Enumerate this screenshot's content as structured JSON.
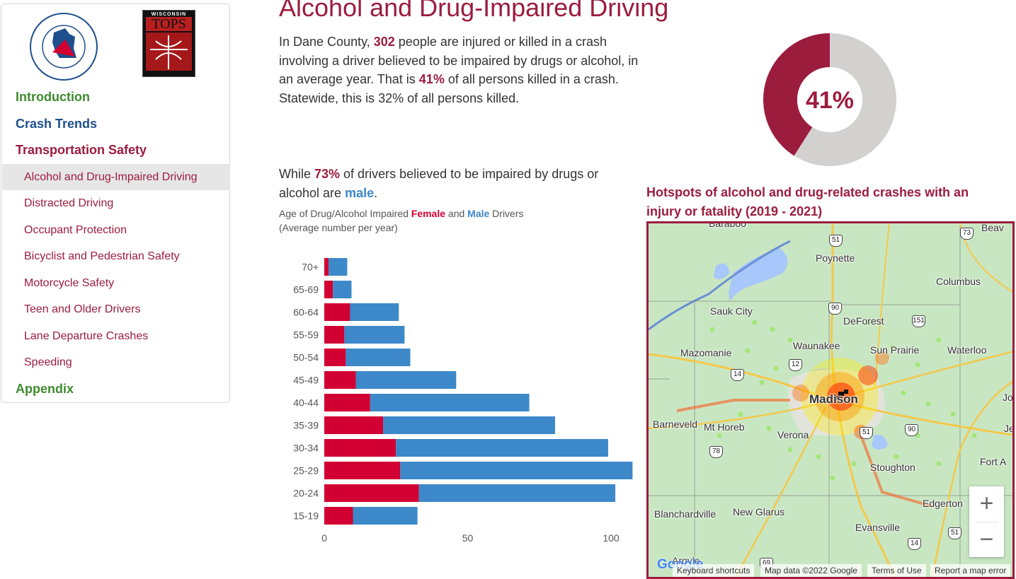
{
  "sidebar": {
    "logo_wisdot_text": "WISCONSIN DEPARTMENT OF TRANSPORTATION",
    "logo_tops_small": "WISCONSIN",
    "logo_tops_big": "TOPS",
    "sections": [
      {
        "label": "Introduction",
        "color": "#3f8a2f"
      },
      {
        "label": "Crash Trends",
        "color": "#1f4f8c"
      },
      {
        "label": "Transportation Safety",
        "color": "#9c1c3e"
      },
      {
        "label": "Appendix",
        "color": "#3f8a2f"
      }
    ],
    "items": [
      {
        "label": "Alcohol and Drug-Impaired Driving",
        "active": true
      },
      {
        "label": "Distracted Driving"
      },
      {
        "label": "Occupant Protection"
      },
      {
        "label": "Bicyclist and Pedestrian Safety"
      },
      {
        "label": "Motorcycle Safety"
      },
      {
        "label": "Teen and Older Drivers"
      },
      {
        "label": "Lane Departure Crashes"
      },
      {
        "label": "Speeding"
      }
    ]
  },
  "main": {
    "title": "Alcohol and Drug-Impaired Driving",
    "intro": {
      "p1": "In Dane County, ",
      "count": "302",
      "p2": " people are injured or killed in a crash involving a driver believed to be impaired by drugs or alcohol, in an average year. That is ",
      "pct": "41%",
      "p3": " of all persons killed in a crash. Statewide, this is 32% of all persons killed."
    },
    "male_stat": {
      "p1": "While ",
      "pct": "73%",
      "p2": " of drivers believed to be impaired by drugs or alcohol are ",
      "male": "male",
      "p3": "."
    },
    "chart_caption": {
      "p1": "Age of Drug/Alcohol Impaired ",
      "female": "Female",
      "p2": " and ",
      "male": "Male",
      "p3": " Drivers (Average number per year)"
    },
    "donut_label": "41%"
  },
  "colors": {
    "accent": "#9c1c3e",
    "female": "#d20032",
    "male": "#3d88c8",
    "donut_grey": "#d3d0d0"
  },
  "chart_data": [
    {
      "type": "bar",
      "orientation": "horizontal",
      "stacked": true,
      "categories": [
        "70+",
        "65-69",
        "60-64",
        "55-59",
        "50-54",
        "45-49",
        "40-44",
        "35-39",
        "30-34",
        "25-29",
        "20-24",
        "15-19"
      ],
      "series": [
        {
          "name": "Female",
          "color": "#d20032",
          "values": [
            1.5,
            3,
            9,
            7,
            7.5,
            11,
            16,
            20.5,
            25,
            26.5,
            33,
            10
          ]
        },
        {
          "name": "Male",
          "color": "#3d88c8",
          "values": [
            6.5,
            6.5,
            17,
            21,
            22.5,
            35,
            55.5,
            60,
            74,
            81,
            68.5,
            22.5
          ]
        }
      ],
      "xticks": [
        0,
        50,
        100
      ],
      "xlim": [
        0,
        108
      ],
      "grid": false
    },
    {
      "type": "pie",
      "donut": true,
      "labels": [
        "",
        ""
      ],
      "values": [
        41,
        59
      ],
      "colors": [
        "#9c1c3e",
        "#d3d0d0"
      ],
      "center_label": "41%"
    }
  ],
  "map": {
    "title": "Hotspots of alcohol and drug-related crashes with an injury or fatality (2019 - 2021)",
    "places": [
      {
        "name": "Baraboo",
        "big": false
      },
      {
        "name": "Beav",
        "big": false
      },
      {
        "name": "Poynette",
        "big": false
      },
      {
        "name": "Columbus",
        "big": false
      },
      {
        "name": "Sauk City",
        "big": false
      },
      {
        "name": "DeForest",
        "big": false
      },
      {
        "name": "Mazomanie",
        "big": false
      },
      {
        "name": "Waunakee",
        "big": false
      },
      {
        "name": "Sun Prairie",
        "big": false
      },
      {
        "name": "Waterloo",
        "big": false
      },
      {
        "name": "Madison",
        "big": true
      },
      {
        "name": "Jo",
        "big": false
      },
      {
        "name": "Barneveld",
        "big": false
      },
      {
        "name": "Mt Horeb",
        "big": false
      },
      {
        "name": "Verona",
        "big": false
      },
      {
        "name": "Je",
        "big": false
      },
      {
        "name": "Stoughton",
        "big": false
      },
      {
        "name": "Fort A",
        "big": false
      },
      {
        "name": "Edgerton",
        "big": false
      },
      {
        "name": "Blanchardville",
        "big": false
      },
      {
        "name": "New Glarus",
        "big": false
      },
      {
        "name": "Evansville",
        "big": false
      },
      {
        "name": "Argyle",
        "big": false
      }
    ],
    "shields": [
      "51",
      "73",
      "90",
      "151",
      "12",
      "14",
      "51",
      "90",
      "78",
      "51",
      "14",
      "69"
    ],
    "zoom_in": "+",
    "zoom_out": "−",
    "google": "Google",
    "attribution": {
      "shortcuts": "Keyboard shortcuts",
      "data": "Map data ©2022 Google",
      "terms": "Terms of Use",
      "report": "Report a map error"
    }
  }
}
